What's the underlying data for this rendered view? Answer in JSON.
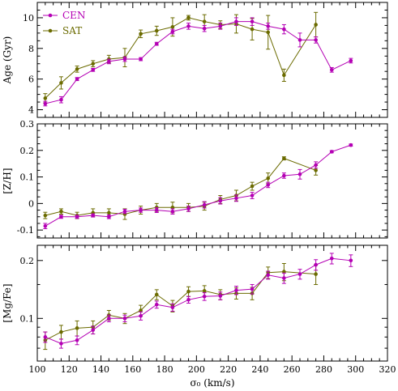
{
  "colors": {
    "cen": "#b400b4",
    "sat": "#6b6b00",
    "frame": "#000000",
    "background": "#ffffff"
  },
  "chart_data": [
    {
      "type": "line",
      "id": "age",
      "ylabel": "Age (Gyr)",
      "xlabel": "",
      "xlim": [
        100,
        320
      ],
      "ylim": [
        3.5,
        11
      ],
      "yticks_major": [
        4,
        6,
        8,
        10
      ],
      "ytick_minor_step": 0.5,
      "legend": {
        "position": "top-left",
        "entries": [
          "CEN",
          "SAT"
        ]
      },
      "series": [
        {
          "name": "CEN",
          "x": [
            105,
            115,
            125,
            135,
            145,
            155,
            165,
            175,
            185,
            195,
            205,
            215,
            225,
            235,
            245,
            255,
            265,
            275,
            285,
            297
          ],
          "y": [
            4.4,
            4.65,
            6.0,
            6.6,
            7.15,
            7.3,
            7.3,
            8.3,
            9.1,
            9.45,
            9.3,
            9.45,
            9.75,
            9.75,
            9.45,
            9.25,
            8.55,
            8.55,
            6.6,
            7.2
          ],
          "err": [
            0.15,
            0.2,
            0.1,
            0.1,
            0.15,
            0.15,
            0.1,
            0.1,
            0.15,
            0.2,
            0.2,
            0.2,
            0.25,
            0.25,
            0.2,
            0.3,
            0.45,
            0.2,
            0.15,
            0.15
          ]
        },
        {
          "name": "SAT",
          "x": [
            105,
            115,
            125,
            135,
            145,
            155,
            165,
            175,
            185,
            195,
            205,
            215,
            225,
            235,
            245,
            255,
            275
          ],
          "y": [
            4.75,
            5.75,
            6.65,
            7.0,
            7.3,
            7.4,
            8.95,
            9.15,
            9.4,
            10.0,
            9.75,
            9.55,
            9.6,
            9.25,
            9.05,
            6.25,
            9.55
          ],
          "err": [
            0.3,
            0.4,
            0.2,
            0.2,
            0.25,
            0.6,
            0.25,
            0.3,
            0.6,
            0.15,
            0.45,
            0.25,
            0.6,
            0.7,
            1.1,
            0.4,
            0.8
          ]
        }
      ]
    },
    {
      "type": "line",
      "id": "zh",
      "ylabel": "[Z/H]",
      "xlabel": "",
      "xlim": [
        100,
        320
      ],
      "ylim": [
        -0.13,
        0.3
      ],
      "yticks_major": [
        -0.1,
        0,
        0.1,
        0.2,
        0.3
      ],
      "ytick_minor_step": 0.025,
      "series": [
        {
          "name": "CEN",
          "x": [
            105,
            115,
            125,
            135,
            145,
            155,
            165,
            175,
            185,
            195,
            205,
            215,
            225,
            235,
            245,
            255,
            265,
            275,
            285,
            297
          ],
          "y": [
            -0.085,
            -0.05,
            -0.05,
            -0.045,
            -0.05,
            -0.03,
            -0.025,
            -0.025,
            -0.03,
            -0.02,
            -0.005,
            0.01,
            0.02,
            0.03,
            0.07,
            0.105,
            0.11,
            0.145,
            0.195,
            0.22
          ],
          "err": [
            0.01,
            0.006,
            0.006,
            0.006,
            0.007,
            0.008,
            0.008,
            0.009,
            0.01,
            0.01,
            0.012,
            0.012,
            0.012,
            0.012,
            0.01,
            0.01,
            0.018,
            0.012,
            0.004,
            0.004
          ]
        },
        {
          "name": "SAT",
          "x": [
            105,
            115,
            125,
            135,
            145,
            155,
            165,
            175,
            185,
            195,
            205,
            215,
            225,
            235,
            245,
            255,
            275
          ],
          "y": [
            -0.045,
            -0.03,
            -0.045,
            -0.035,
            -0.035,
            -0.04,
            -0.025,
            -0.015,
            -0.015,
            -0.015,
            -0.01,
            0.015,
            0.03,
            0.065,
            0.095,
            0.17,
            0.125
          ],
          "err": [
            0.012,
            0.01,
            0.012,
            0.015,
            0.015,
            0.02,
            0.015,
            0.015,
            0.02,
            0.015,
            0.015,
            0.015,
            0.02,
            0.015,
            0.02,
            0.006,
            0.018
          ]
        }
      ]
    },
    {
      "type": "line",
      "id": "mgfe",
      "ylabel": "[Mg/Fe]",
      "xlabel": "σ₀  (km/s)",
      "xlim": [
        100,
        320
      ],
      "ylim": [
        0.06,
        0.24
      ],
      "yscale": "log",
      "yticks_major": [
        0.1,
        0.2
      ],
      "yticks_minor": [
        0.07,
        0.08,
        0.09,
        0.15
      ],
      "xticks_major": [
        100,
        120,
        140,
        160,
        180,
        200,
        220,
        240,
        260,
        280,
        300,
        320
      ],
      "xtick_minor_step": 5,
      "series": [
        {
          "name": "CEN",
          "x": [
            105,
            115,
            125,
            135,
            145,
            155,
            165,
            175,
            185,
            195,
            205,
            215,
            225,
            235,
            245,
            255,
            265,
            275,
            285,
            297
          ],
          "y": [
            0.08,
            0.074,
            0.077,
            0.087,
            0.1,
            0.1,
            0.103,
            0.118,
            0.114,
            0.125,
            0.13,
            0.131,
            0.14,
            0.142,
            0.168,
            0.162,
            0.17,
            0.19,
            0.205,
            0.2
          ],
          "err": [
            0.005,
            0.004,
            0.004,
            0.004,
            0.004,
            0.004,
            0.005,
            0.005,
            0.005,
            0.005,
            0.006,
            0.006,
            0.007,
            0.008,
            0.008,
            0.01,
            0.01,
            0.012,
            0.013,
            0.014
          ]
        },
        {
          "name": "SAT",
          "x": [
            105,
            115,
            125,
            135,
            145,
            155,
            165,
            175,
            185,
            195,
            205,
            215,
            225,
            235,
            245,
            255,
            275
          ],
          "y": [
            0.077,
            0.085,
            0.089,
            0.09,
            0.104,
            0.1,
            0.11,
            0.133,
            0.116,
            0.138,
            0.139,
            0.133,
            0.135,
            0.135,
            0.173,
            0.175,
            0.17
          ],
          "err": [
            0.008,
            0.007,
            0.008,
            0.007,
            0.006,
            0.006,
            0.007,
            0.008,
            0.008,
            0.008,
            0.009,
            0.008,
            0.009,
            0.01,
            0.012,
            0.018,
            0.02
          ]
        }
      ]
    }
  ]
}
